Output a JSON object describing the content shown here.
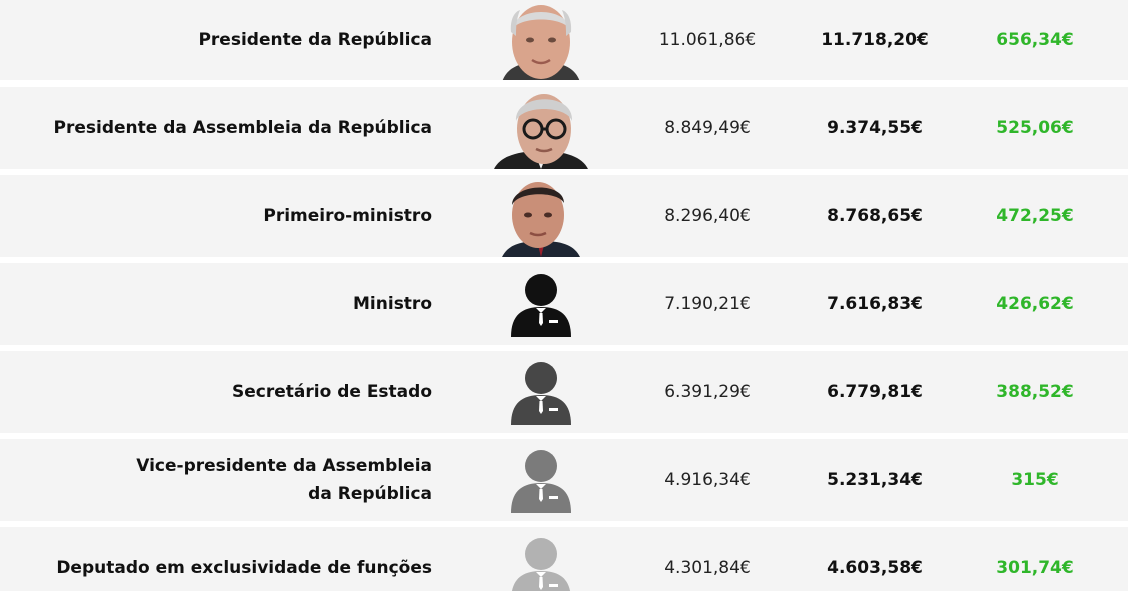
{
  "colors": {
    "row_background": "#f4f4f4",
    "increase_text": "#2fb62a",
    "text_dark": "#111111"
  },
  "rows": [
    {
      "role": "Presidente da República",
      "photo": "photo-president-portrait",
      "before": "11.061,86€",
      "after": "11.718,20€",
      "increase": "656,34€"
    },
    {
      "role": "Presidente da Assembleia da República",
      "photo": "photo-assembly-president-portrait",
      "before": "8.849,49€",
      "after": "9.374,55€",
      "increase": "525,06€"
    },
    {
      "role": "Primeiro-ministro",
      "photo": "photo-prime-minister-portrait",
      "before": "8.296,40€",
      "after": "8.768,65€",
      "increase": "472,25€"
    },
    {
      "role": "Ministro",
      "icon": "person-suit-icon",
      "icon_color": "#111111",
      "before": "7.190,21€",
      "after": "7.616,83€",
      "increase": "426,62€"
    },
    {
      "role": "Secretário de Estado",
      "icon": "person-suit-icon",
      "icon_color": "#474747",
      "before": "6.391,29€",
      "after": "6.779,81€",
      "increase": "388,52€"
    },
    {
      "role": "Vice-presidente da Assembleia\nda República",
      "icon": "person-suit-icon",
      "icon_color": "#7b7b7b",
      "before": "4.916,34€",
      "after": "5.231,34€",
      "increase": "315€"
    },
    {
      "role": "Deputado em exclusividade de funções",
      "icon": "person-suit-icon",
      "icon_color": "#b2b2b2",
      "before": "4.301,84€",
      "after": "4.603,58€",
      "increase": "301,74€"
    }
  ]
}
